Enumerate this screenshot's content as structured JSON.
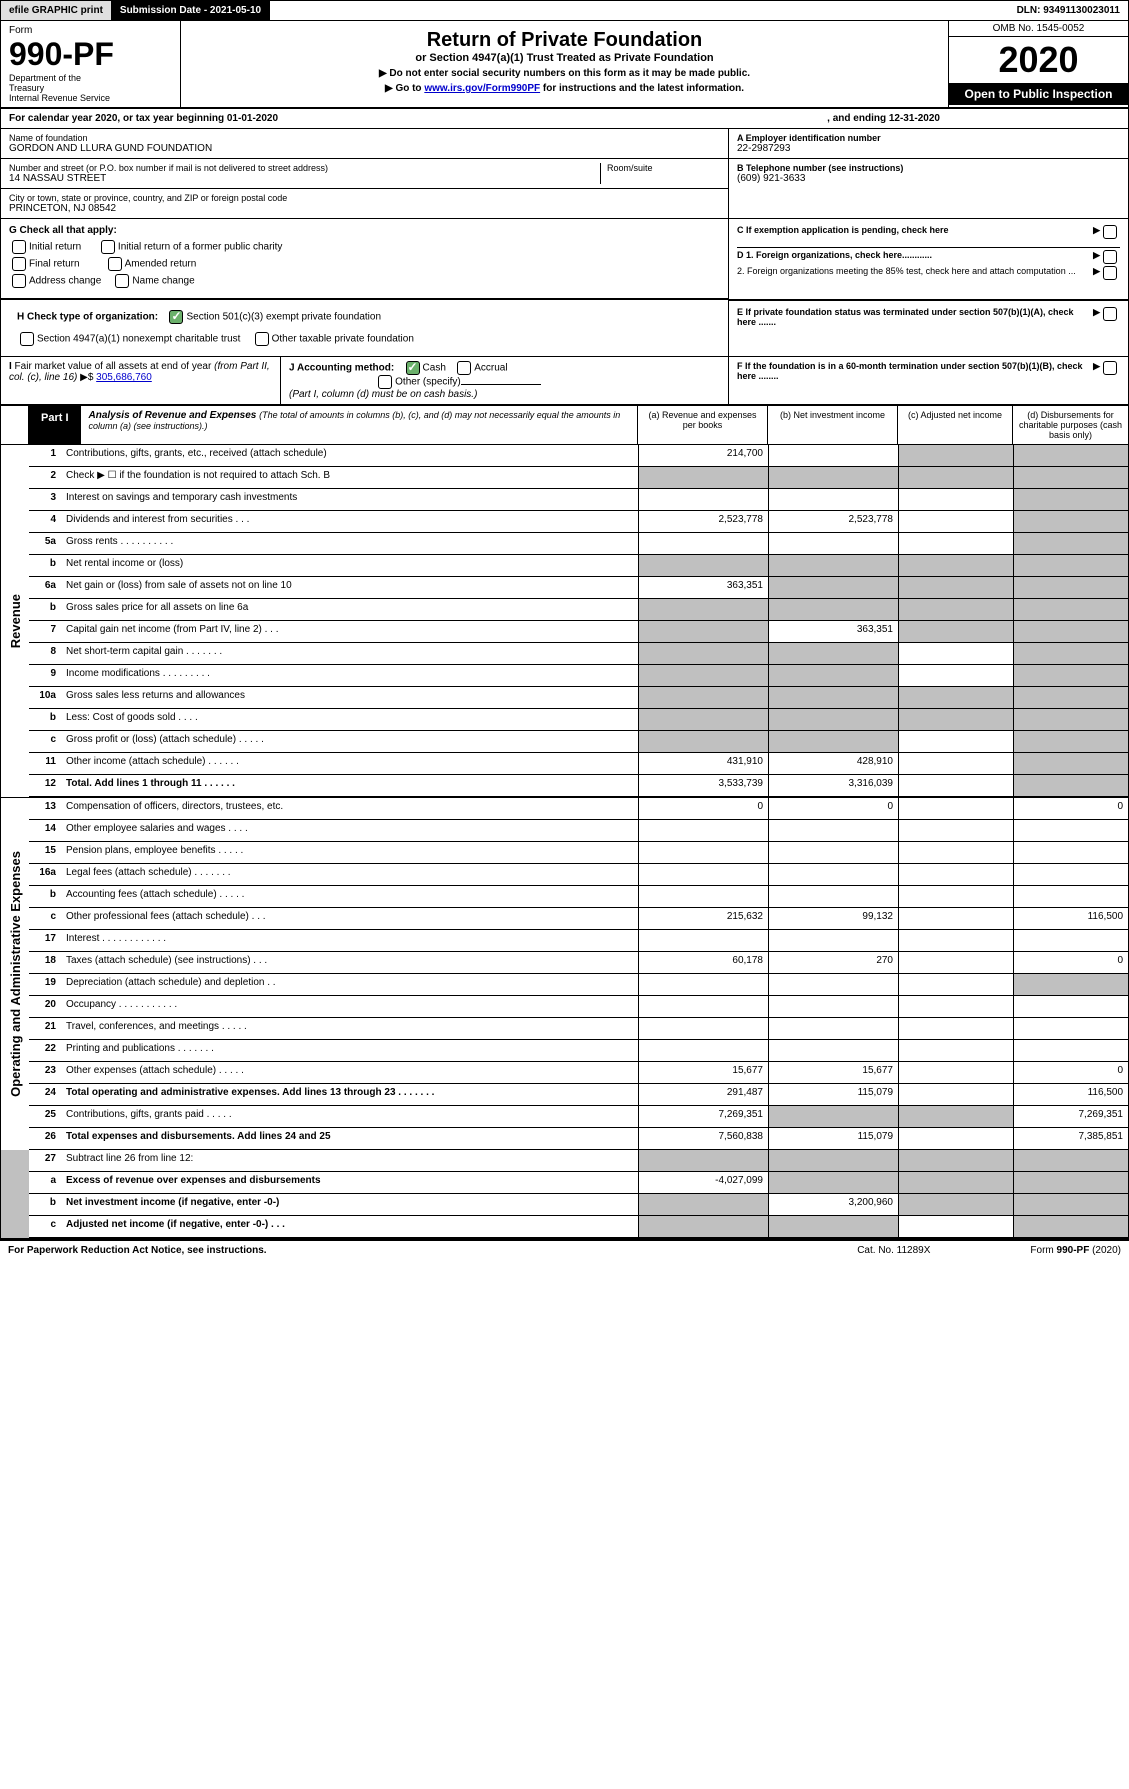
{
  "topbar": {
    "efile": "efile GRAPHIC print",
    "subdate": "Submission Date - 2021-05-10",
    "dln": "DLN: 93491130023011"
  },
  "header": {
    "form_label": "Form",
    "form_num": "990-PF",
    "dept": "Department of the Treasury\nInternal Revenue Service",
    "title": "Return of Private Foundation",
    "subtitle": "or Section 4947(a)(1) Trust Treated as Private Foundation",
    "note1": "▶ Do not enter social security numbers on this form as it may be made public.",
    "note2": "▶ Go to www.irs.gov/Form990PF for instructions and the latest information.",
    "link_text": "www.irs.gov/Form990PF",
    "omb": "OMB No. 1545-0052",
    "year": "2020",
    "open": "Open to Public Inspection"
  },
  "calendar": {
    "text": "For calendar year 2020, or tax year beginning 01-01-2020",
    "ending": ", and ending 12-31-2020"
  },
  "info": {
    "name_label": "Name of foundation",
    "name": "GORDON AND LLURA GUND FOUNDATION",
    "addr_label": "Number and street (or P.O. box number if mail is not delivered to street address)",
    "addr": "14 NASSAU STREET",
    "room_label": "Room/suite",
    "city_label": "City or town, state or province, country, and ZIP or foreign postal code",
    "city": "PRINCETON, NJ  08542",
    "ein_label": "A Employer identification number",
    "ein": "22-2987293",
    "phone_label": "B Telephone number (see instructions)",
    "phone": "(609) 921-3633",
    "c_label": "C If exemption application is pending, check here",
    "d1": "D 1. Foreign organizations, check here............",
    "d2": "2. Foreign organizations meeting the 85% test, check here and attach computation ...",
    "e": "E  If private foundation status was terminated under section 507(b)(1)(A), check here .......",
    "f": "F  If the foundation is in a 60-month termination under section 507(b)(1)(B), check here ........"
  },
  "g": {
    "label": "G Check all that apply:",
    "opts": [
      "Initial return",
      "Initial return of a former public charity",
      "Final return",
      "Amended return",
      "Address change",
      "Name change"
    ]
  },
  "h": {
    "label": "H Check type of organization:",
    "opt1": "Section 501(c)(3) exempt private foundation",
    "opt2": "Section 4947(a)(1) nonexempt charitable trust",
    "opt3": "Other taxable private foundation"
  },
  "i": {
    "label": "I Fair market value of all assets at end of year (from Part II, col. (c), line 16) ▶$",
    "value": "305,686,760"
  },
  "j": {
    "label": "J Accounting method:",
    "cash": "Cash",
    "accrual": "Accrual",
    "other": "Other (specify)",
    "note": "(Part I, column (d) must be on cash basis.)"
  },
  "part1": {
    "label": "Part I",
    "title": "Analysis of Revenue and Expenses",
    "note": "(The total of amounts in columns (b), (c), and (d) may not necessarily equal the amounts in column (a) (see instructions).)",
    "col_a": "(a)    Revenue and expenses per books",
    "col_b": "(b)   Net investment income",
    "col_c": "(c)   Adjusted net income",
    "col_d": "(d)   Disbursements for charitable purposes (cash basis only)"
  },
  "revenue_label": "Revenue",
  "expenses_label": "Operating and Administrative Expenses",
  "rows": [
    {
      "n": "1",
      "d": "Contributions, gifts, grants, etc., received (attach schedule)",
      "a": "214,700",
      "b": "",
      "c": "grey",
      "dcol": "grey"
    },
    {
      "n": "2",
      "d": "Check ▶ ☐ if the foundation is not required to attach Sch. B",
      "a": "grey",
      "b": "grey",
      "c": "grey",
      "dcol": "grey",
      "dots": true
    },
    {
      "n": "3",
      "d": "Interest on savings and temporary cash investments",
      "a": "",
      "b": "",
      "c": "",
      "dcol": "grey"
    },
    {
      "n": "4",
      "d": "Dividends and interest from securities   .   .   .",
      "a": "2,523,778",
      "b": "2,523,778",
      "c": "",
      "dcol": "grey"
    },
    {
      "n": "5a",
      "d": "Gross rents   .   .   .   .   .   .   .   .   .   .",
      "a": "",
      "b": "",
      "c": "",
      "dcol": "grey"
    },
    {
      "n": "b",
      "d": "Net rental income or (loss)",
      "a": "grey",
      "b": "grey",
      "c": "grey",
      "dcol": "grey"
    },
    {
      "n": "6a",
      "d": "Net gain or (loss) from sale of assets not on line 10",
      "a": "363,351",
      "b": "grey",
      "c": "grey",
      "dcol": "grey"
    },
    {
      "n": "b",
      "d": "Gross sales price for all assets on line 6a",
      "a": "grey",
      "b": "grey",
      "c": "grey",
      "dcol": "grey"
    },
    {
      "n": "7",
      "d": "Capital gain net income (from Part IV, line 2)   .   .   .",
      "a": "grey",
      "b": "363,351",
      "c": "grey",
      "dcol": "grey"
    },
    {
      "n": "8",
      "d": "Net short-term capital gain   .   .   .   .   .   .   .",
      "a": "grey",
      "b": "grey",
      "c": "",
      "dcol": "grey"
    },
    {
      "n": "9",
      "d": "Income modifications   .   .   .   .   .   .   .   .   .",
      "a": "grey",
      "b": "grey",
      "c": "",
      "dcol": "grey"
    },
    {
      "n": "10a",
      "d": "Gross sales less returns and allowances",
      "a": "grey",
      "b": "grey",
      "c": "grey",
      "dcol": "grey"
    },
    {
      "n": "b",
      "d": "Less: Cost of goods sold   .   .   .   .",
      "a": "grey",
      "b": "grey",
      "c": "grey",
      "dcol": "grey"
    },
    {
      "n": "c",
      "d": "Gross profit or (loss) (attach schedule)   .   .   .   .   .",
      "a": "grey",
      "b": "grey",
      "c": "",
      "dcol": "grey"
    },
    {
      "n": "11",
      "d": "Other income (attach schedule)   .   .   .   .   .   .",
      "a": "431,910",
      "b": "428,910",
      "c": "",
      "dcol": "grey"
    },
    {
      "n": "12",
      "d": "Total. Add lines 1 through 11   .   .   .   .   .   .",
      "a": "3,533,739",
      "b": "3,316,039",
      "c": "",
      "dcol": "grey",
      "bold": true
    }
  ],
  "exp_rows": [
    {
      "n": "13",
      "d": "Compensation of officers, directors, trustees, etc.",
      "a": "0",
      "b": "0",
      "c": "",
      "dcol": "0"
    },
    {
      "n": "14",
      "d": "Other employee salaries and wages   .   .   .   .",
      "a": "",
      "b": "",
      "c": "",
      "dcol": ""
    },
    {
      "n": "15",
      "d": "Pension plans, employee benefits   .   .   .   .   .",
      "a": "",
      "b": "",
      "c": "",
      "dcol": ""
    },
    {
      "n": "16a",
      "d": "Legal fees (attach schedule)   .   .   .   .   .   .   .",
      "a": "",
      "b": "",
      "c": "",
      "dcol": ""
    },
    {
      "n": "b",
      "d": "Accounting fees (attach schedule)   .   .   .   .   .",
      "a": "",
      "b": "",
      "c": "",
      "dcol": ""
    },
    {
      "n": "c",
      "d": "Other professional fees (attach schedule)   .   .   .",
      "a": "215,632",
      "b": "99,132",
      "c": "",
      "dcol": "116,500"
    },
    {
      "n": "17",
      "d": "Interest   .   .   .   .   .   .   .   .   .   .   .   .",
      "a": "",
      "b": "",
      "c": "",
      "dcol": ""
    },
    {
      "n": "18",
      "d": "Taxes (attach schedule) (see instructions)   .   .   .",
      "a": "60,178",
      "b": "270",
      "c": "",
      "dcol": "0"
    },
    {
      "n": "19",
      "d": "Depreciation (attach schedule) and depletion   .   .",
      "a": "",
      "b": "",
      "c": "",
      "dcol": "grey"
    },
    {
      "n": "20",
      "d": "Occupancy   .   .   .   .   .   .   .   .   .   .   .",
      "a": "",
      "b": "",
      "c": "",
      "dcol": ""
    },
    {
      "n": "21",
      "d": "Travel, conferences, and meetings   .   .   .   .   .",
      "a": "",
      "b": "",
      "c": "",
      "dcol": ""
    },
    {
      "n": "22",
      "d": "Printing and publications   .   .   .   .   .   .   .",
      "a": "",
      "b": "",
      "c": "",
      "dcol": ""
    },
    {
      "n": "23",
      "d": "Other expenses (attach schedule)   .   .   .   .   .",
      "a": "15,677",
      "b": "15,677",
      "c": "",
      "dcol": "0"
    },
    {
      "n": "24",
      "d": "Total operating and administrative expenses. Add lines 13 through 23   .   .   .   .   .   .   .",
      "a": "291,487",
      "b": "115,079",
      "c": "",
      "dcol": "116,500",
      "bold": true
    },
    {
      "n": "25",
      "d": "Contributions, gifts, grants paid   .   .   .   .   .",
      "a": "7,269,351",
      "b": "grey",
      "c": "grey",
      "dcol": "7,269,351"
    },
    {
      "n": "26",
      "d": "Total expenses and disbursements. Add lines 24 and 25",
      "a": "7,560,838",
      "b": "115,079",
      "c": "",
      "dcol": "7,385,851",
      "bold": true
    }
  ],
  "sub_rows": [
    {
      "n": "27",
      "d": "Subtract line 26 from line 12:",
      "a": "grey",
      "b": "grey",
      "c": "grey",
      "dcol": "grey"
    },
    {
      "n": "a",
      "d": "Excess of revenue over expenses and disbursements",
      "a": "-4,027,099",
      "b": "grey",
      "c": "grey",
      "dcol": "grey",
      "bold": true
    },
    {
      "n": "b",
      "d": "Net investment income (if negative, enter -0-)",
      "a": "grey",
      "b": "3,200,960",
      "c": "grey",
      "dcol": "grey",
      "bold": true
    },
    {
      "n": "c",
      "d": "Adjusted net income (if negative, enter -0-)   .   .   .",
      "a": "grey",
      "b": "grey",
      "c": "",
      "dcol": "grey",
      "bold": true
    }
  ],
  "footer": {
    "paperwork": "For Paperwork Reduction Act Notice, see instructions.",
    "cat": "Cat. No. 11289X",
    "form": "Form 990-PF (2020)"
  },
  "colors": {
    "black": "#000000",
    "grey_cell": "#c0c0c0",
    "link": "#0000cc",
    "check_green": "#6bb06b"
  }
}
